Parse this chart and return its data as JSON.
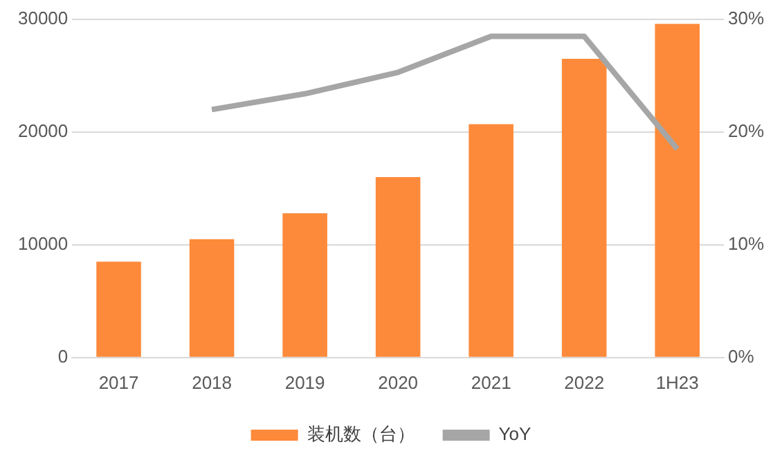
{
  "chart_data": {
    "type": "bar",
    "categories": [
      "2017",
      "2018",
      "2019",
      "2020",
      "2021",
      "2022",
      "1H23"
    ],
    "series": [
      {
        "name": "装机数（台）",
        "color": "#fd8a3a",
        "values": [
          8500,
          10500,
          12800,
          16000,
          20700,
          26500,
          29600
        ]
      },
      {
        "name": "YoY",
        "type": "line",
        "axis": "y2",
        "color": "#a6a6a6",
        "values": [
          null,
          22.0,
          23.4,
          25.3,
          28.5,
          28.5,
          18.5
        ]
      }
    ],
    "ylim": [
      0,
      30000
    ],
    "yticks": [
      0,
      10000,
      20000,
      30000
    ],
    "y2lim": [
      0,
      30
    ],
    "y2ticks": [
      {
        "value": 0,
        "label": "0%"
      },
      {
        "value": 10,
        "label": "10%"
      },
      {
        "value": 20,
        "label": "20%"
      },
      {
        "value": 30,
        "label": "30%"
      }
    ],
    "grid": "y",
    "legend": "bottom",
    "marker": "none",
    "line_style": "solid"
  }
}
